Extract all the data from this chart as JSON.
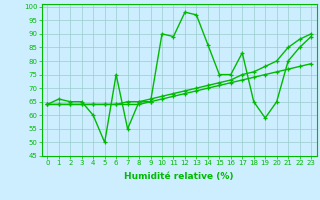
{
  "xlabel": "Humidité relative (%)",
  "background_color": "#cceeff",
  "grid_color": "#99cccc",
  "line_color": "#00bb00",
  "x": [
    0,
    1,
    2,
    3,
    4,
    5,
    6,
    7,
    8,
    9,
    10,
    11,
    12,
    13,
    14,
    15,
    16,
    17,
    18,
    19,
    20,
    21,
    22,
    23
  ],
  "line1": [
    64,
    66,
    65,
    65,
    60,
    50,
    75,
    55,
    65,
    65,
    90,
    89,
    98,
    97,
    86,
    75,
    75,
    83,
    65,
    59,
    65,
    80,
    85,
    89
  ],
  "line2": [
    64,
    64,
    64,
    64,
    64,
    64,
    64,
    64,
    64,
    65,
    66,
    67,
    68,
    69,
    70,
    71,
    72,
    73,
    74,
    75,
    76,
    77,
    78,
    79
  ],
  "line3": [
    64,
    64,
    64,
    64,
    64,
    64,
    64,
    65,
    65,
    66,
    67,
    68,
    69,
    70,
    71,
    72,
    73,
    75,
    76,
    78,
    80,
    85,
    88,
    90
  ],
  "ylim": [
    45,
    101
  ],
  "yticks": [
    45,
    50,
    55,
    60,
    65,
    70,
    75,
    80,
    85,
    90,
    95,
    100
  ],
  "xticks": [
    0,
    1,
    2,
    3,
    4,
    5,
    6,
    7,
    8,
    9,
    10,
    11,
    12,
    13,
    14,
    15,
    16,
    17,
    18,
    19,
    20,
    21,
    22,
    23
  ],
  "marker": "+",
  "markersize": 3.5,
  "linewidth": 1.0,
  "tick_fontsize": 5.0,
  "xlabel_fontsize": 6.5
}
